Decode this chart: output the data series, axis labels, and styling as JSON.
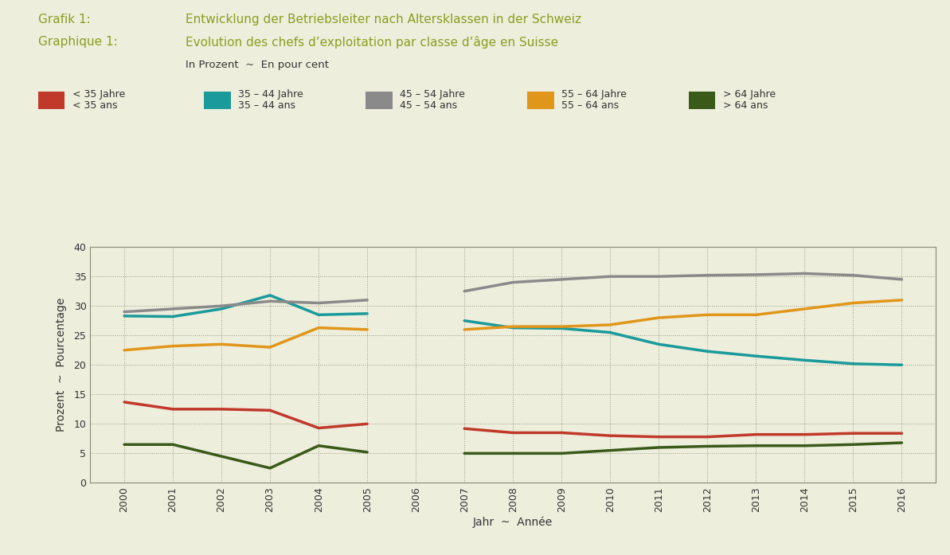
{
  "title_line1_label": "Grafik 1:",
  "title_line1_text": "Entwicklung der Betriebsleiter nach Altersklassen in der Schweiz",
  "title_line2_label": "Graphique 1:",
  "title_line2_text": "Evolution des chefs d’exploitation par classe d’âge en Suisse",
  "subtitle": "In Prozent  ~  En pour cent",
  "xlabel": "Jahr  ~  Année",
  "ylabel": "Prozent  ~  Pourcentage",
  "bg_color": "#eeeedd",
  "plot_bg_color": "#eeeedd",
  "title_color": "#8b9e1e",
  "years_part1": [
    2000,
    2001,
    2002,
    2003,
    2004,
    2005
  ],
  "years_part2": [
    2007,
    2008,
    2009,
    2010,
    2011,
    2012,
    2013,
    2014,
    2015,
    2016
  ],
  "series": [
    {
      "key": "lt35",
      "label_de": "< 35 Jahre",
      "label_fr": "< 35 ans",
      "color": "#c0392b",
      "values_part1": [
        13.7,
        12.5,
        12.5,
        12.3,
        9.3,
        10.0
      ],
      "values_part2": [
        9.2,
        8.5,
        8.5,
        8.0,
        7.8,
        7.8,
        8.2,
        8.2,
        8.4,
        8.4
      ]
    },
    {
      "key": "35to44",
      "label_de": "35 – 44 Jahre",
      "label_fr": "35 – 44 ans",
      "color": "#1a9a9a",
      "values_part1": [
        28.3,
        28.2,
        29.5,
        31.8,
        28.5,
        28.7
      ],
      "values_part2": [
        27.5,
        26.3,
        26.2,
        25.5,
        23.5,
        22.3,
        21.5,
        20.8,
        20.2,
        20.0
      ]
    },
    {
      "key": "45to54",
      "label_de": "45 – 54 Jahre",
      "label_fr": "45 – 54 ans",
      "color": "#8a8a8a",
      "values_part1": [
        29.0,
        29.5,
        30.0,
        30.8,
        30.5,
        31.0
      ],
      "values_part2": [
        32.5,
        34.0,
        34.5,
        35.0,
        35.0,
        35.2,
        35.3,
        35.5,
        35.2,
        34.5
      ]
    },
    {
      "key": "55to64",
      "label_de": "55 – 64 Jahre",
      "label_fr": "55 – 64 ans",
      "color": "#e0961a",
      "values_part1": [
        22.5,
        23.2,
        23.5,
        23.0,
        26.3,
        26.0
      ],
      "values_part2": [
        26.0,
        26.5,
        26.5,
        26.8,
        28.0,
        28.5,
        28.5,
        29.5,
        30.5,
        31.0
      ]
    },
    {
      "key": "gt64",
      "label_de": "> 64 Jahre",
      "label_fr": "> 64 ans",
      "color": "#3a5a1a",
      "values_part1": [
        6.5,
        6.5,
        4.5,
        2.5,
        6.3,
        5.2
      ],
      "values_part2": [
        5.0,
        5.0,
        5.0,
        5.5,
        6.0,
        6.2,
        6.3,
        6.3,
        6.5,
        6.8
      ]
    }
  ],
  "ylim": [
    0,
    40
  ],
  "yticks": [
    0,
    5,
    10,
    15,
    20,
    25,
    30,
    35,
    40
  ],
  "linewidth": 2.5
}
